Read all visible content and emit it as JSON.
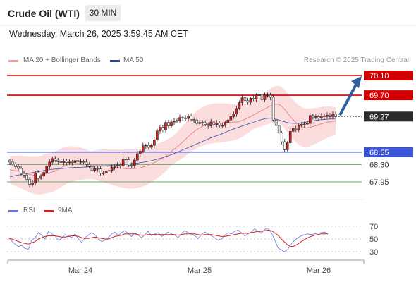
{
  "header": {
    "instrument": "Crude Oil (WTI)",
    "timeframe": "30 MIN",
    "datetime": "Wednesday, March 26, 2025 3:59:45 AM CET"
  },
  "legend": {
    "ma20": "MA 20 + Bollinger Bands",
    "ma50": "MA 50",
    "credit": "Research © 2025 Trading Central"
  },
  "rsi_legend": {
    "rsi": "RSI",
    "ma9": "9MA"
  },
  "colors": {
    "resistance": "#d20000",
    "support": "#3a55d8",
    "target": "#6aa56a",
    "arrow": "#2f5f9e",
    "ma20": "#e88080",
    "ma50": "#4a5fb3",
    "bollinger": "#fbd2d2",
    "candle_up": "#d22020",
    "candle_down": "#ffffff",
    "rsi": "#6677dd",
    "rsi_ma": "#d22020"
  },
  "chart_data": [
    {
      "type": "candlestick",
      "title": "Crude Oil (WTI) 30 MIN",
      "x_labels": [
        "Mar 24",
        "Mar 25",
        "Mar 26"
      ],
      "ylim": [
        67.8,
        70.2
      ],
      "levels": [
        {
          "value": "70.10",
          "kind": "resistance"
        },
        {
          "value": "69.70",
          "kind": "resistance"
        },
        {
          "value": "69.27",
          "kind": "last"
        },
        {
          "value": "68.55",
          "kind": "support"
        },
        {
          "value": "68.30",
          "kind": "target"
        },
        {
          "value": "67.95",
          "kind": "target"
        }
      ],
      "close": [
        68.35,
        68.31,
        68.26,
        68.22,
        68.12,
        68.09,
        68.0,
        67.9,
        67.93,
        68.13,
        68.02,
        68.07,
        68.14,
        68.26,
        68.35,
        68.42,
        68.39,
        68.36,
        68.34,
        68.37,
        68.34,
        68.35,
        68.34,
        68.38,
        68.36,
        68.36,
        68.35,
        68.3,
        68.26,
        68.18,
        68.22,
        68.21,
        68.13,
        68.13,
        68.17,
        68.18,
        68.24,
        68.27,
        68.29,
        68.27,
        68.41,
        68.4,
        68.29,
        68.28,
        68.39,
        68.52,
        68.57,
        68.68,
        68.69,
        68.65,
        68.69,
        68.8,
        68.98,
        69.05,
        69.0,
        69.15,
        69.08,
        69.16,
        69.18,
        69.19,
        69.25,
        69.24,
        69.23,
        69.28,
        69.21,
        69.2,
        69.13,
        69.15,
        69.14,
        69.11,
        69.08,
        69.16,
        69.11,
        69.14,
        69.09,
        69.09,
        69.15,
        69.2,
        69.27,
        69.32,
        69.43,
        69.55,
        69.65,
        69.59,
        69.56,
        69.64,
        69.62,
        69.7,
        69.71,
        69.61,
        69.7,
        69.7,
        69.66,
        69.2,
        69.09,
        68.94,
        68.76,
        68.6,
        68.74,
        68.97,
        69.03,
        69.01,
        69.09,
        69.11,
        69.12,
        69.13,
        69.29,
        69.26,
        69.27,
        69.24,
        69.28,
        69.27,
        69.3,
        69.27,
        69.32,
        69.27
      ],
      "ma20": [
        68.2,
        68.18,
        68.17,
        68.15,
        68.13,
        68.11,
        68.09,
        68.08,
        68.08,
        68.1,
        68.12,
        68.14,
        68.16,
        68.2,
        68.24,
        68.28,
        68.3,
        68.31,
        68.32,
        68.32,
        68.31,
        68.3,
        68.29,
        68.29,
        68.28,
        68.28,
        68.27,
        68.26,
        68.25,
        68.24,
        68.23,
        68.22,
        68.21,
        68.21,
        68.22,
        68.23,
        68.25,
        68.27,
        68.3,
        68.34,
        68.38,
        68.42,
        68.47,
        68.53,
        68.59,
        68.65,
        68.71,
        68.78,
        68.85,
        68.92,
        68.98,
        69.03,
        69.07,
        69.1,
        69.12,
        69.13,
        69.14,
        69.14,
        69.15,
        69.15,
        69.15,
        69.16,
        69.17,
        69.2,
        69.23,
        69.27,
        69.31,
        69.35,
        69.39,
        69.43,
        69.47,
        69.5,
        69.52,
        69.5,
        69.44,
        69.34,
        69.25,
        69.17,
        69.1,
        69.06,
        69.04,
        69.05,
        69.07,
        69.09,
        69.12,
        69.14,
        69.16,
        69.17,
        69.18
      ],
      "ma50": [
        68.05,
        68.08,
        68.1,
        68.12,
        68.14,
        68.16,
        68.18,
        68.2,
        68.21,
        68.22,
        68.23,
        68.24,
        68.24,
        68.25,
        68.26,
        68.27,
        68.27,
        68.28,
        68.29,
        68.3,
        68.31,
        68.32,
        68.33,
        68.35,
        68.37,
        68.4,
        68.43,
        68.47,
        68.51,
        68.56,
        68.61,
        68.66,
        68.71,
        68.76,
        68.81,
        68.86,
        68.9,
        68.95,
        69.0,
        69.04,
        69.08,
        69.12,
        69.16,
        69.2,
        69.23,
        69.24,
        69.21,
        69.17,
        69.14,
        69.13,
        69.14,
        69.16,
        69.18,
        69.2,
        69.21,
        69.22,
        69.22
      ]
    },
    {
      "type": "line",
      "title": "RSI",
      "series": [
        {
          "name": "RSI",
          "values": [
            52,
            47,
            42,
            38,
            40,
            35,
            34,
            48,
            52,
            60,
            56,
            50,
            62,
            58,
            55,
            48,
            51,
            57,
            55,
            52,
            58,
            50,
            45,
            52,
            56,
            60,
            57,
            50,
            46,
            48,
            52,
            58,
            61,
            55,
            60,
            63,
            58,
            54,
            60,
            56,
            52,
            57,
            62,
            55,
            58,
            60,
            54,
            57,
            61,
            58,
            56,
            52,
            59,
            63,
            60,
            58,
            55,
            51,
            57,
            61,
            58,
            55,
            52,
            48,
            50,
            56,
            60,
            58,
            62,
            64,
            60,
            55,
            58,
            61,
            66,
            62,
            59,
            65,
            67,
            60,
            49,
            36,
            33,
            30,
            34,
            42,
            48,
            52,
            55,
            57,
            58,
            57,
            58,
            59,
            60,
            61,
            58
          ]
        },
        {
          "name": "9MA",
          "values": [
            52,
            50,
            48,
            46,
            44,
            43,
            42,
            44,
            46,
            50,
            52,
            54,
            55,
            55,
            55,
            54,
            53,
            53,
            54,
            55,
            55,
            54,
            52,
            51,
            51,
            52,
            53,
            52,
            51,
            50,
            50,
            52,
            54,
            55,
            56,
            58,
            58,
            58,
            58,
            57,
            56,
            56,
            57,
            57,
            57,
            57,
            57,
            57,
            57,
            57,
            57,
            56,
            57,
            58,
            58,
            58,
            58,
            57,
            56,
            57,
            57,
            57,
            56,
            55,
            54,
            54,
            55,
            56,
            57,
            58,
            59,
            59,
            59,
            60,
            61,
            62,
            62,
            63,
            64,
            63,
            60,
            56,
            50,
            45,
            40,
            38,
            39,
            42,
            46,
            49,
            52,
            54,
            56,
            57,
            58,
            58,
            58
          ]
        }
      ],
      "y_ticks": [
        "70",
        "50",
        "30"
      ],
      "ylim": [
        25,
        75
      ]
    }
  ]
}
